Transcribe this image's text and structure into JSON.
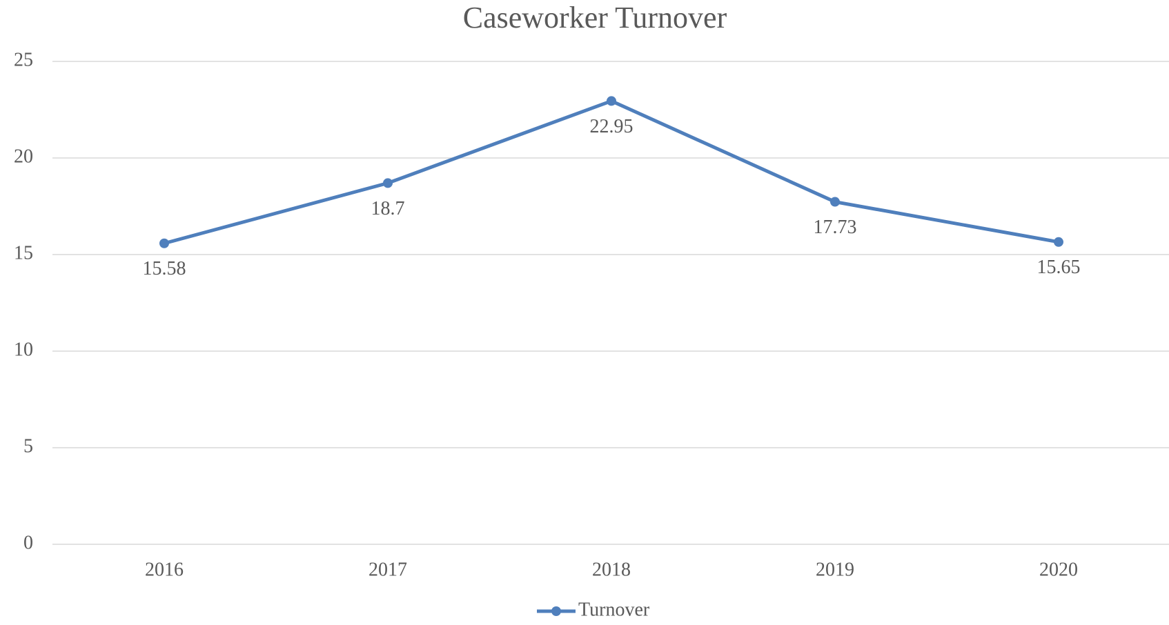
{
  "chart_data": {
    "type": "line",
    "title": "Caseworker Turnover",
    "categories": [
      "2016",
      "2017",
      "2018",
      "2019",
      "2020"
    ],
    "series": [
      {
        "name": "Turnover",
        "color": "#4f7fbc",
        "values": [
          15.58,
          18.7,
          22.95,
          17.73,
          15.65
        ]
      }
    ],
    "ylim": [
      0,
      25
    ],
    "yticks": [
      0,
      5,
      10,
      15,
      20,
      25
    ],
    "grid": true,
    "legend": "bottom"
  }
}
